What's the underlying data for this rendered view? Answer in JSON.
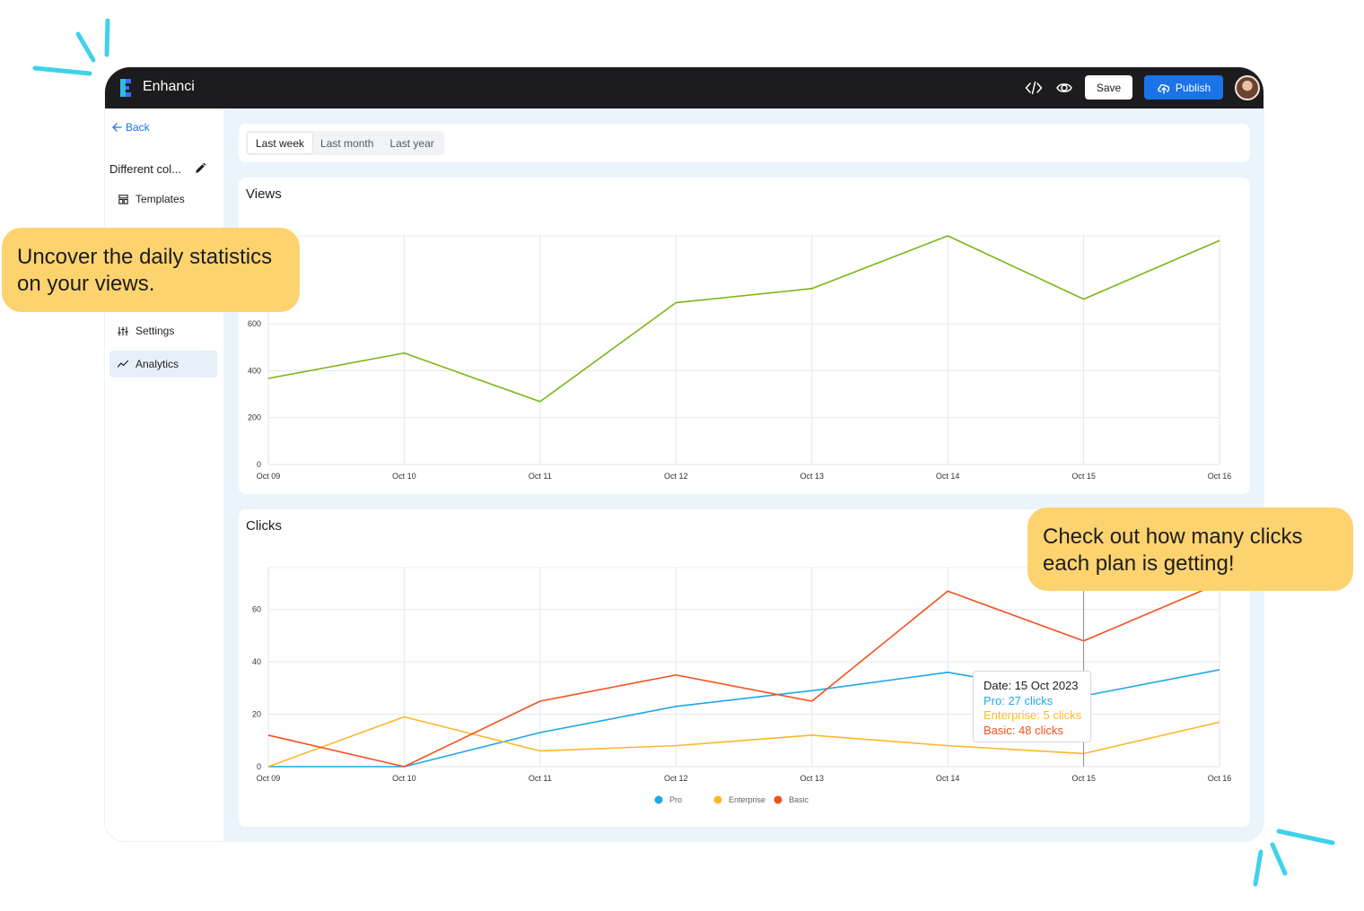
{
  "app": {
    "title": "Enhanci"
  },
  "topbar": {
    "code_icon": "code-icon",
    "preview_icon": "eye-icon",
    "save_label": "Save",
    "publish_label": "Publish",
    "publish_icon": "cloud-upload-icon"
  },
  "sidebar": {
    "back_label": "Back",
    "project_name": "Different col...",
    "items": [
      {
        "label": "Templates",
        "icon": "templates-icon"
      },
      {
        "label": "Settings",
        "icon": "sliders-icon"
      },
      {
        "label": "Analytics",
        "icon": "trend-icon",
        "active": true
      }
    ]
  },
  "range": {
    "options": [
      "Last week",
      "Last month",
      "Last year"
    ],
    "selected": "Last week"
  },
  "views_card": {
    "title": "Views"
  },
  "clicks_card": {
    "title": "Clicks"
  },
  "callouts": {
    "left": [
      "Uncover the daily statistics",
      "on your views."
    ],
    "right": [
      "Check out how many clicks",
      "each plan is getting!"
    ]
  },
  "tooltip": {
    "date": "Date: 15 Oct 2023",
    "pro": "Pro: 27 clicks",
    "enterprise": "Enterprise: 5 clicks",
    "basic": "Basic: 48 clicks"
  },
  "colors": {
    "accent": "#1a73e8",
    "views_line": "#7cb518",
    "pro": "#1ea7e8",
    "enterprise": "#fbb829",
    "basic": "#f4511e",
    "callout": "#fdd36f",
    "deco": "#3fd2e8"
  },
  "chart_data": [
    {
      "type": "line",
      "title": "Views",
      "x": [
        "Oct 09",
        "Oct 10",
        "Oct 11",
        "Oct 12",
        "Oct 13",
        "Oct 14",
        "Oct 15",
        "Oct 16"
      ],
      "series": [
        {
          "values": [
            367,
            475,
            268,
            690,
            750,
            975,
            705,
            955
          ],
          "color": "#7cb518"
        }
      ],
      "yticks": [
        0,
        200,
        400,
        600
      ],
      "ylim": [
        0,
        975
      ],
      "grid": true
    },
    {
      "type": "line",
      "title": "Clicks",
      "x": [
        "Oct 09",
        "Oct 10",
        "Oct 11",
        "Oct 12",
        "Oct 13",
        "Oct 14",
        "Oct 15",
        "Oct 16"
      ],
      "series": [
        {
          "name": "Pro",
          "values": [
            0,
            0,
            13,
            23,
            29,
            36,
            27,
            37
          ],
          "color": "#1ea7e8"
        },
        {
          "name": "Enterprise",
          "values": [
            0,
            19,
            6,
            8,
            12,
            8,
            5,
            17
          ],
          "color": "#fbb829"
        },
        {
          "name": "Basic",
          "values": [
            12,
            0,
            25,
            35,
            25,
            67,
            48,
            70
          ],
          "color": "#f4511e"
        }
      ],
      "yticks": [
        0,
        20,
        40,
        60
      ],
      "ylim": [
        0,
        76
      ],
      "legend": "bottom",
      "grid": true
    }
  ]
}
